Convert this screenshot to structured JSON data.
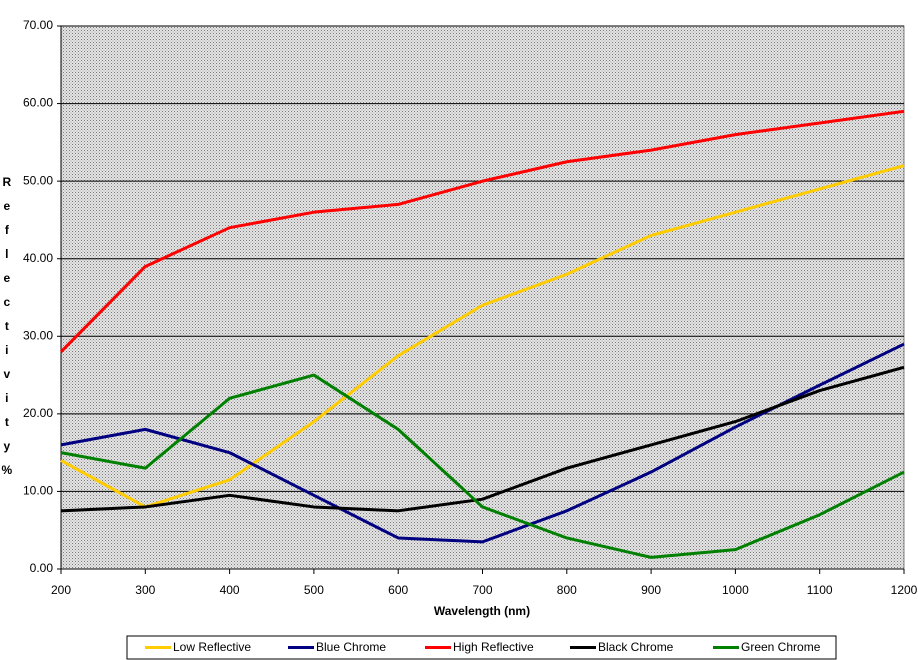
{
  "chart_data": {
    "type": "line",
    "x_label": "Wavelength (nm)",
    "y_label": "R e f l e c t i v i t y   %",
    "x": [
      200,
      300,
      400,
      500,
      600,
      700,
      800,
      900,
      1000,
      1100,
      1200
    ],
    "xlim": [
      200,
      1200
    ],
    "xticks": [
      200,
      300,
      400,
      500,
      600,
      700,
      800,
      900,
      1000,
      1100,
      1200
    ],
    "ylim": [
      0,
      70
    ],
    "yticks": [
      {
        "value": 0,
        "label": "0.00"
      },
      {
        "value": 10,
        "label": "10.00"
      },
      {
        "value": 20,
        "label": "20.00"
      },
      {
        "value": 30,
        "label": "30.00"
      },
      {
        "value": 40,
        "label": "40.00"
      },
      {
        "value": 50,
        "label": "50.00"
      },
      {
        "value": 60,
        "label": "60.00"
      },
      {
        "value": 70,
        "label": "70.00"
      }
    ],
    "grid": true,
    "legend": "bottom",
    "series": [
      {
        "name": "Low Reflective",
        "color": "#ffcc00",
        "values": [
          14,
          8,
          11.5,
          19,
          27.5,
          34,
          38,
          43,
          46,
          49,
          52
        ]
      },
      {
        "name": "Blue Chrome",
        "color": "#000080",
        "values": [
          16,
          18,
          15,
          9.5,
          4,
          3.5,
          7.5,
          12.5,
          18.3,
          23.7,
          29
        ]
      },
      {
        "name": "High Reflective",
        "color": "#ff0000",
        "values": [
          28,
          39,
          44,
          46,
          47,
          50,
          52.5,
          54,
          56,
          57.5,
          59
        ]
      },
      {
        "name": "Black Chrome",
        "color": "#000000",
        "values": [
          7.5,
          8,
          9.5,
          8,
          7.5,
          9,
          13,
          16,
          19,
          23,
          26
        ]
      },
      {
        "name": "Green Chrome",
        "color": "#008000",
        "values": [
          15,
          13,
          22,
          25,
          18,
          8,
          4,
          1.5,
          2.5,
          7,
          12.5
        ]
      }
    ]
  }
}
